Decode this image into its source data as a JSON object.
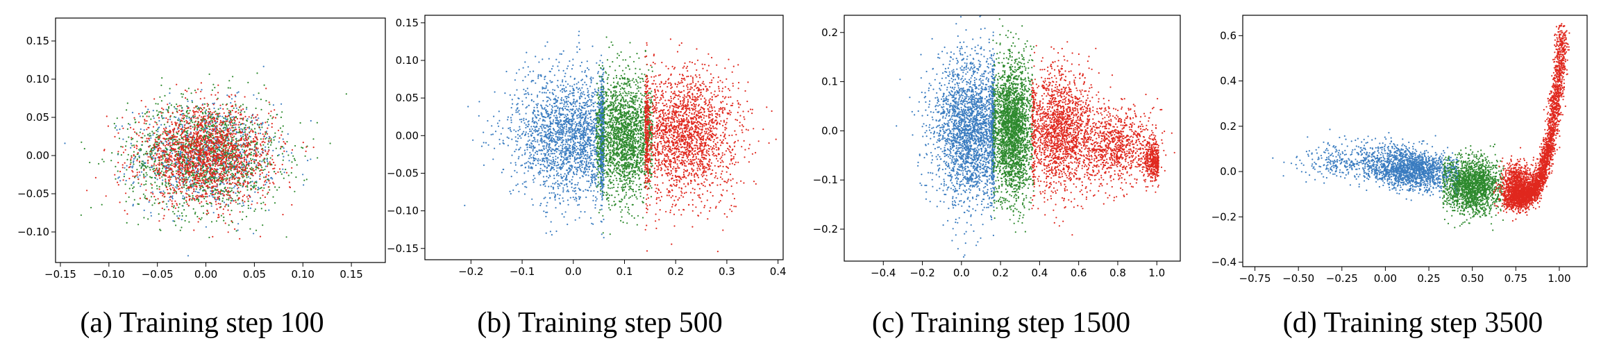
{
  "colors": {
    "blue": "#3a7cc0",
    "green": "#2e8a2e",
    "red": "#e0281e"
  },
  "chart_data": [
    {
      "type": "scatter",
      "caption": "(a) Training step 100",
      "xlim": [
        -0.155,
        0.185
      ],
      "ylim": [
        -0.14,
        0.18
      ],
      "xticks": [
        -0.15,
        -0.1,
        -0.05,
        0.0,
        0.05,
        0.1,
        0.15
      ],
      "xtick_labels": [
        "−0.15",
        "−0.10",
        "−0.05",
        "0.00",
        "0.05",
        "0.10",
        "0.15"
      ],
      "yticks": [
        -0.1,
        -0.05,
        0.0,
        0.05,
        0.1,
        0.15
      ],
      "ytick_labels": [
        "−0.10",
        "−0.05",
        "0.00",
        "0.05",
        "0.10",
        "0.15"
      ],
      "grid": false,
      "series": [
        {
          "color": "blue",
          "clusters": [
            {
              "cx": 0.0,
              "cy": 0.0,
              "sx": 0.036,
              "sy": 0.034,
              "n": 900
            }
          ]
        },
        {
          "color": "green",
          "clusters": [
            {
              "cx": 0.0,
              "cy": 0.0,
              "sx": 0.04,
              "sy": 0.037,
              "n": 1500
            }
          ]
        },
        {
          "color": "red",
          "clusters": [
            {
              "cx": 0.0,
              "cy": 0.0,
              "sx": 0.034,
              "sy": 0.031,
              "n": 1900
            }
          ]
        }
      ]
    },
    {
      "type": "scatter",
      "caption": "(b) Training step 500",
      "xlim": [
        -0.29,
        0.41
      ],
      "ylim": [
        -0.165,
        0.16
      ],
      "xticks": [
        -0.2,
        -0.1,
        0.0,
        0.1,
        0.2,
        0.3,
        0.4
      ],
      "xtick_labels": [
        "−0.2",
        "−0.1",
        "0.0",
        "0.1",
        "0.2",
        "0.3",
        "0.4"
      ],
      "yticks": [
        -0.15,
        -0.1,
        -0.05,
        0.0,
        0.05,
        0.1,
        0.15
      ],
      "ytick_labels": [
        "−0.15",
        "−0.10",
        "−0.05",
        "0.00",
        "0.05",
        "0.10",
        "0.15"
      ],
      "grid": false,
      "series": [
        {
          "color": "blue",
          "clusters": [
            {
              "cx": 0.0,
              "cy": 0.0,
              "sx": 0.06,
              "sy": 0.042,
              "n": 2400,
              "xmax": 0.06
            }
          ]
        },
        {
          "color": "green",
          "clusters": [
            {
              "cx": 0.1,
              "cy": 0.0,
              "sx": 0.03,
              "sy": 0.04,
              "n": 2000,
              "xmin": 0.045,
              "xmax": 0.155
            }
          ]
        },
        {
          "color": "red",
          "clusters": [
            {
              "cx": 0.21,
              "cy": 0.0,
              "sx": 0.055,
              "sy": 0.042,
              "n": 2200,
              "xmin": 0.14
            }
          ]
        }
      ]
    },
    {
      "type": "scatter",
      "caption": "(c) Training step 1500",
      "xlim": [
        -0.6,
        1.12
      ],
      "ylim": [
        -0.265,
        0.235
      ],
      "xticks": [
        -0.4,
        -0.2,
        0.0,
        0.2,
        0.4,
        0.6,
        0.8,
        1.0
      ],
      "xtick_labels": [
        "−0.4",
        "−0.2",
        "0.0",
        "0.2",
        "0.4",
        "0.6",
        "0.8",
        "1.0"
      ],
      "yticks": [
        -0.2,
        -0.1,
        0.0,
        0.1,
        0.2
      ],
      "ytick_labels": [
        "−0.2",
        "−0.1",
        "0.0",
        "0.1",
        "0.2"
      ],
      "grid": false,
      "series": [
        {
          "color": "blue",
          "clusters": [
            {
              "cx": 0.05,
              "cy": 0.0,
              "sx": 0.1,
              "sy": 0.075,
              "n": 2600,
              "xmax": 0.17
            }
          ]
        },
        {
          "color": "green",
          "clusters": [
            {
              "cx": 0.26,
              "cy": 0.0,
              "sx": 0.05,
              "sy": 0.07,
              "n": 2400,
              "xmin": 0.16,
              "xmax": 0.37
            }
          ]
        },
        {
          "color": "red",
          "clusters": [
            {
              "cx": 0.5,
              "cy": 0.0,
              "sx": 0.09,
              "sy": 0.06,
              "n": 1700,
              "xmin": 0.36
            },
            {
              "cx": 0.78,
              "cy": -0.03,
              "sx": 0.1,
              "sy": 0.04,
              "n": 900
            },
            {
              "cx": 0.98,
              "cy": -0.06,
              "sx": 0.03,
              "sy": 0.02,
              "n": 400,
              "xmax": 1.01
            }
          ]
        }
      ]
    },
    {
      "type": "scatter",
      "caption": "(d) Training step 3500",
      "xlim": [
        -0.82,
        1.16
      ],
      "ylim": [
        -0.42,
        0.69
      ],
      "xticks": [
        -0.75,
        -0.5,
        -0.25,
        0.0,
        0.25,
        0.5,
        0.75,
        1.0
      ],
      "xtick_labels": [
        "−0.75",
        "−0.50",
        "−0.25",
        "0.00",
        "0.25",
        "0.50",
        "0.75",
        "1.00"
      ],
      "yticks": [
        -0.4,
        -0.2,
        0.0,
        0.2,
        0.4,
        0.6
      ],
      "ytick_labels": [
        "−0.4",
        "−0.2",
        "0.0",
        "0.2",
        "0.4",
        "0.6"
      ],
      "grid": false,
      "series": [
        {
          "color": "blue",
          "clusters": [
            {
              "cx": 0.15,
              "cy": 0.01,
              "sx": 0.14,
              "sy": 0.045,
              "n": 1800,
              "slope": -0.1,
              "xmax": 0.42
            },
            {
              "cx": -0.25,
              "cy": 0.05,
              "sx": 0.12,
              "sy": 0.04,
              "n": 250
            }
          ]
        },
        {
          "color": "green",
          "clusters": [
            {
              "cx": 0.5,
              "cy": -0.06,
              "sx": 0.08,
              "sy": 0.06,
              "n": 1800,
              "xmin": 0.33,
              "xmax": 0.68
            }
          ]
        },
        {
          "color": "red",
          "clusters": [
            {
              "cx": 0.76,
              "cy": -0.06,
              "sx": 0.05,
              "sy": 0.05,
              "n": 900,
              "xmin": 0.62
            },
            {
              "curve": true,
              "n": 2600
            }
          ]
        }
      ]
    }
  ]
}
